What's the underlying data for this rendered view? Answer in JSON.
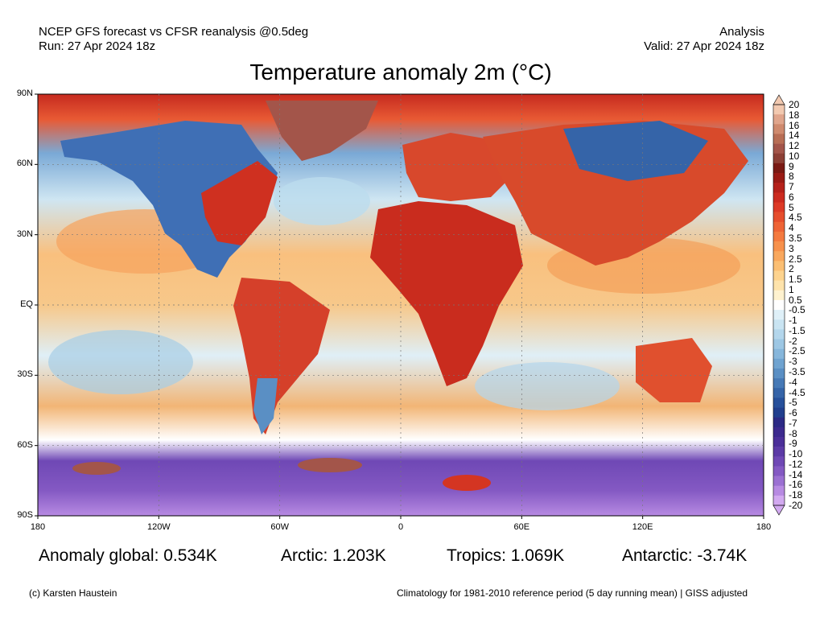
{
  "header": {
    "left_line1": "NCEP GFS forecast vs CFSR reanalysis @0.5deg",
    "left_line2": "Run: 27 Apr 2024 18z",
    "right_line1": "Analysis",
    "right_line2": "Valid: 27 Apr 2024 18z"
  },
  "title": "Temperature anomaly 2m (°C)",
  "map": {
    "lat_ticks": [
      "90N",
      "60N",
      "30N",
      "EQ",
      "30S",
      "60S",
      "90S"
    ],
    "lon_ticks": [
      "180",
      "120W",
      "60W",
      "0",
      "60E",
      "120E",
      "180"
    ],
    "colors": {
      "ocean_base": "#f7d9a6",
      "land": "#d64a2a",
      "arctic_warm": "#a3554a",
      "antarctic_cold": "#7b5ec9"
    }
  },
  "colorbar": {
    "labels": [
      "20",
      "18",
      "16",
      "14",
      "12",
      "10",
      "9",
      "8",
      "7",
      "6",
      "5",
      "4.5",
      "4",
      "3.5",
      "3",
      "2.5",
      "2",
      "1.5",
      "1",
      "0.5",
      "-0.5",
      "-1",
      "-1.5",
      "-2",
      "-2.5",
      "-3",
      "-3.5",
      "-4",
      "-4.5",
      "-5",
      "-6",
      "-7",
      "-8",
      "-9",
      "-10",
      "-12",
      "-14",
      "-16",
      "-18",
      "-20"
    ],
    "colors": [
      "#f2c9b0",
      "#e0a58c",
      "#cf8a6e",
      "#b86e55",
      "#a3554a",
      "#8c3f35",
      "#7a1a14",
      "#9a1b15",
      "#b5211a",
      "#cc2b1f",
      "#dd3a26",
      "#e64e2d",
      "#ee6436",
      "#f47a3f",
      "#f7914c",
      "#f9a85e",
      "#fbbf74",
      "#fdd38e",
      "#fee3ab",
      "#fff2cf",
      "#ffffff",
      "#dff0f8",
      "#c9e4f2",
      "#b3d6ec",
      "#9dc7e4",
      "#86b6db",
      "#6fa3d0",
      "#5a8fc4",
      "#4679b6",
      "#3564a8",
      "#27509b",
      "#213f8e",
      "#2c2a85",
      "#3c2a8e",
      "#4b2f99",
      "#5c3aa6",
      "#6f48b5",
      "#8459c3",
      "#9b70d2",
      "#b78ae2",
      "#d2a9f0"
    ]
  },
  "stats": {
    "global": "Anomaly global: 0.534K",
    "arctic": "Arctic: 1.203K",
    "tropics": "Tropics: 1.069K",
    "antarctic": "Antarctic: -3.74K"
  },
  "footer": {
    "left": "(c) Karsten Haustein",
    "right": "Climatology for 1981-2010 reference period (5 day running mean) | GISS adjusted"
  }
}
